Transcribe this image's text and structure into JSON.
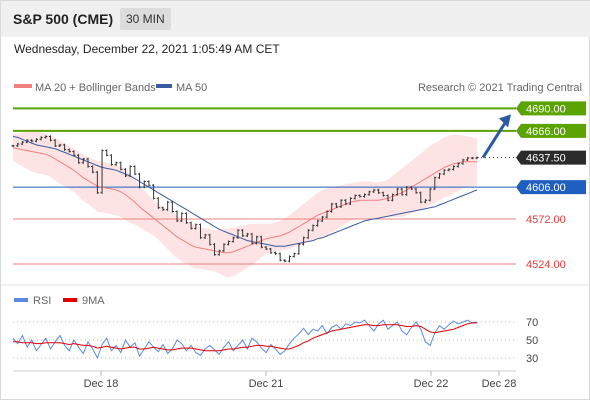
{
  "header": {
    "title": "S&P 500 (CME)",
    "timeframe": "30 MIN"
  },
  "datetime": "Wednesday, December 22, 2021 1:05:49 AM CET",
  "legend": {
    "ma20": "MA 20 + Bollinger Bands",
    "ma50": "MA 50",
    "credit": "Research © 2021 Trading Central",
    "rsi": "RSI",
    "ma9": "9MA"
  },
  "colors": {
    "price": "#333333",
    "ma20": "#f08080",
    "bollinger_fill": "#fde3e3",
    "ma50": "#3a5ba0",
    "green_level": "#5aa300",
    "blue_level": "#1f5fbf",
    "red_level": "#e88080",
    "arrow": "#2a5aa0",
    "rsi": "#5b8ae0",
    "rsi_ma": "#e00000"
  },
  "chart_data": [
    {
      "type": "line",
      "panel": "price",
      "ylim": [
        4508,
        4700
      ],
      "x_ticks": [
        "Dec 18",
        "Dec 21",
        "Dec 22",
        "Dec 28"
      ],
      "levels": [
        {
          "label": "4690.00",
          "value": 4690,
          "kind": "resistance",
          "style": "green-box"
        },
        {
          "label": "4666.00",
          "value": 4666,
          "kind": "resistance",
          "style": "green-box"
        },
        {
          "label": "4637.50",
          "value": 4637.5,
          "kind": "last-price",
          "style": "dark-box"
        },
        {
          "label": "4606.00",
          "value": 4606,
          "kind": "pivot",
          "style": "blue-box"
        },
        {
          "label": "4572.00",
          "value": 4572,
          "kind": "support",
          "style": "red-text"
        },
        {
          "label": "4524.00",
          "value": 4524,
          "kind": "support",
          "style": "red-text"
        }
      ],
      "price": [
        4650,
        4652,
        4654,
        4656,
        4655,
        4657,
        4659,
        4660,
        4656,
        4650,
        4651,
        4646,
        4644,
        4640,
        4632,
        4636,
        4628,
        4622,
        4600,
        4645,
        4640,
        4630,
        4632,
        4625,
        4618,
        4628,
        4620,
        4606,
        4612,
        4608,
        4594,
        4584,
        4582,
        4590,
        4580,
        4570,
        4578,
        4568,
        4562,
        4566,
        4552,
        4555,
        4545,
        4534,
        4538,
        4545,
        4548,
        4552,
        4560,
        4554,
        4556,
        4546,
        4553,
        4542,
        4540,
        4536,
        4535,
        4528,
        4527,
        4532,
        4535,
        4545,
        4552,
        4560,
        4565,
        4570,
        4574,
        4580,
        4588,
        4585,
        4592,
        4588,
        4594,
        4597,
        4596,
        4598,
        4601,
        4603,
        4600,
        4597,
        4592,
        4598,
        4604,
        4598,
        4606,
        4604,
        4600,
        4590,
        4592,
        4604,
        4616,
        4620,
        4624,
        4625,
        4628,
        4631,
        4635,
        4637,
        4637,
        4637.5
      ],
      "ma20": [
        4648,
        4647,
        4646,
        4645,
        4644,
        4643,
        4642,
        4641,
        4639,
        4636,
        4633,
        4630,
        4627,
        4624,
        4620,
        4616,
        4613,
        4610,
        4607,
        4606,
        4605,
        4604,
        4603,
        4601,
        4598,
        4594,
        4590,
        4585,
        4581,
        4577,
        4573,
        4569,
        4565,
        4561,
        4557,
        4553,
        4550,
        4547,
        4544,
        4542,
        4541,
        4540,
        4539,
        4538,
        4537,
        4536,
        4536,
        4537,
        4539,
        4541,
        4543,
        4545,
        4547,
        4549,
        4551,
        4552,
        4553,
        4554,
        4556,
        4558,
        4561,
        4564,
        4567,
        4570,
        4573,
        4576,
        4578,
        4580,
        4582,
        4584,
        4586,
        4588,
        4590,
        4591,
        4592,
        4592,
        4592,
        4592,
        4592,
        4593,
        4594,
        4596,
        4598,
        4600,
        4603,
        4606,
        4609,
        4612,
        4615,
        4618,
        4621,
        4624,
        4627,
        4629,
        4631,
        4632,
        4633,
        4633,
        4633,
        4633
      ],
      "upper_band": [
        4662,
        4663,
        4664,
        4665,
        4665,
        4665,
        4664,
        4663,
        4661,
        4659,
        4656,
        4653,
        4650,
        4647,
        4644,
        4641,
        4638,
        4636,
        4634,
        4633,
        4632,
        4631,
        4630,
        4628,
        4625,
        4620,
        4614,
        4607,
        4602,
        4597,
        4592,
        4588,
        4585,
        4582,
        4579,
        4576,
        4573,
        4570,
        4567,
        4565,
        4563,
        4562,
        4561,
        4560,
        4560,
        4561,
        4562,
        4563,
        4564,
        4565,
        4566,
        4567,
        4567,
        4567,
        4567,
        4567,
        4568,
        4570,
        4573,
        4576,
        4580,
        4584,
        4588,
        4592,
        4596,
        4600,
        4603,
        4605,
        4606,
        4607,
        4608,
        4609,
        4610,
        4611,
        4612,
        4612,
        4612,
        4611,
        4611,
        4612,
        4614,
        4618,
        4622,
        4626,
        4630,
        4634,
        4638,
        4642,
        4646,
        4650,
        4653,
        4656,
        4659,
        4661,
        4662,
        4662,
        4661,
        4660,
        4659,
        4658
      ],
      "lower_band": [
        4634,
        4631,
        4628,
        4625,
        4623,
        4621,
        4620,
        4619,
        4617,
        4613,
        4610,
        4607,
        4604,
        4601,
        4596,
        4591,
        4588,
        4584,
        4580,
        4579,
        4578,
        4577,
        4576,
        4574,
        4571,
        4568,
        4566,
        4563,
        4560,
        4557,
        4554,
        4550,
        4545,
        4540,
        4535,
        4530,
        4527,
        4524,
        4521,
        4519,
        4519,
        4518,
        4517,
        4516,
        4514,
        4511,
        4510,
        4511,
        4514,
        4517,
        4520,
        4523,
        4527,
        4531,
        4535,
        4537,
        4538,
        4538,
        4539,
        4540,
        4542,
        4544,
        4546,
        4548,
        4550,
        4552,
        4553,
        4555,
        4558,
        4561,
        4564,
        4567,
        4570,
        4571,
        4572,
        4572,
        4572,
        4573,
        4573,
        4574,
        4574,
        4574,
        4574,
        4574,
        4576,
        4578,
        4580,
        4582,
        4584,
        4586,
        4589,
        4592,
        4595,
        4597,
        4600,
        4602,
        4605,
        4606,
        4607,
        4608
      ],
      "ma50": [
        4660,
        4659,
        4657,
        4655,
        4653,
        4651,
        4650,
        4649,
        4648,
        4647,
        4645,
        4643,
        4641,
        4639,
        4637,
        4635,
        4633,
        4631,
        4629,
        4627,
        4626,
        4625,
        4624,
        4622,
        4620,
        4618,
        4615,
        4612,
        4609,
        4606,
        4603,
        4600,
        4597,
        4594,
        4591,
        4588,
        4585,
        4582,
        4579,
        4576,
        4573,
        4570,
        4567,
        4564,
        4561,
        4559,
        4557,
        4555,
        4553,
        4551,
        4549,
        4548,
        4547,
        4546,
        4545,
        4544,
        4543,
        4543,
        4543,
        4544,
        4545,
        4546,
        4547,
        4548,
        4549,
        4551,
        4552,
        4554,
        4556,
        4558,
        4560,
        4562,
        4564,
        4566,
        4568,
        4570,
        4571,
        4572,
        4573,
        4574,
        4575,
        4576,
        4577,
        4578,
        4579,
        4580,
        4581,
        4582,
        4583,
        4584,
        4585,
        4587,
        4589,
        4591,
        4593,
        4595,
        4597,
        4599,
        4601,
        4603
      ]
    },
    {
      "type": "line",
      "panel": "rsi",
      "ylim": [
        20,
        80
      ],
      "y_ticks": [
        70,
        50,
        30
      ],
      "series": [
        {
          "name": "RSI",
          "values": [
            52,
            46,
            55,
            42,
            50,
            38,
            45,
            52,
            40,
            48,
            55,
            44,
            38,
            50,
            42,
            35,
            48,
            40,
            30,
            45,
            52,
            38,
            44,
            36,
            50,
            42,
            47,
            32,
            40,
            48,
            42,
            37,
            45,
            35,
            40,
            50,
            46,
            38,
            44,
            36,
            33,
            40,
            44,
            39,
            34,
            42,
            48,
            38,
            44,
            50,
            40,
            52,
            48,
            41,
            36,
            45,
            40,
            34,
            38,
            46,
            52,
            57,
            63,
            56,
            62,
            60,
            66,
            57,
            64,
            67,
            62,
            68,
            66,
            70,
            69,
            72,
            66,
            60,
            68,
            72,
            62,
            66,
            70,
            60,
            56,
            64,
            70,
            62,
            48,
            44,
            58,
            66,
            62,
            67,
            71,
            68,
            70,
            72,
            69,
            70
          ]
        },
        {
          "name": "9MA",
          "values": [
            48,
            48,
            47,
            47,
            47,
            46,
            46,
            47,
            47,
            47,
            47,
            46,
            45,
            46,
            45,
            44,
            44,
            43,
            41,
            42,
            43,
            42,
            41,
            40,
            41,
            42,
            42,
            40,
            40,
            41,
            42,
            41,
            40,
            39,
            39,
            40,
            41,
            41,
            41,
            40,
            39,
            38,
            38,
            38,
            38,
            39,
            40,
            40,
            41,
            42,
            42,
            43,
            44,
            44,
            43,
            43,
            42,
            41,
            40,
            40,
            42,
            44,
            47,
            49,
            52,
            54,
            56,
            58,
            60,
            61,
            62,
            63,
            64,
            65,
            66,
            67,
            67,
            66,
            66,
            67,
            67,
            67,
            67,
            66,
            65,
            65,
            66,
            65,
            62,
            59,
            58,
            59,
            60,
            61,
            62,
            64,
            66,
            68,
            69,
            69
          ]
        }
      ]
    }
  ]
}
